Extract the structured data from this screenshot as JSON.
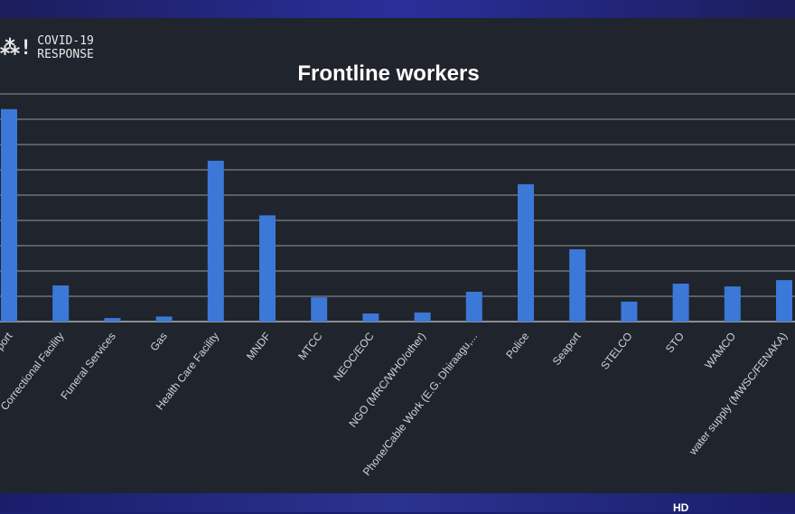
{
  "logo": {
    "mark": "⁂!",
    "line1": "COVID-19",
    "line2": "RESPONSE"
  },
  "badge": "HD",
  "chart_data": {
    "type": "bar",
    "title": "Frontline workers",
    "categories": [
      "Airport",
      "Correctional Facility",
      "Funeral Services",
      "Gas",
      "Health Care Facility",
      "MNDF",
      "MTCC",
      "NEOC/EOC",
      "NGO (MRC/WHO/other)",
      "Phone/Cable Work (E.G. Dhiraagu,...",
      "Police",
      "Seaport",
      "STELCO",
      "STO",
      "WAMCO",
      "water supply (MWSC/FENAKA)"
    ],
    "values": [
      8.4,
      1.43,
      0.14,
      0.2,
      6.36,
      4.2,
      0.96,
      0.32,
      0.36,
      1.18,
      5.43,
      2.86,
      0.79,
      1.5,
      1.39,
      1.64
    ],
    "ylim": [
      0,
      9
    ],
    "grid": true,
    "bar_color": "#3b78d8",
    "xlabel": "",
    "ylabel": ""
  }
}
